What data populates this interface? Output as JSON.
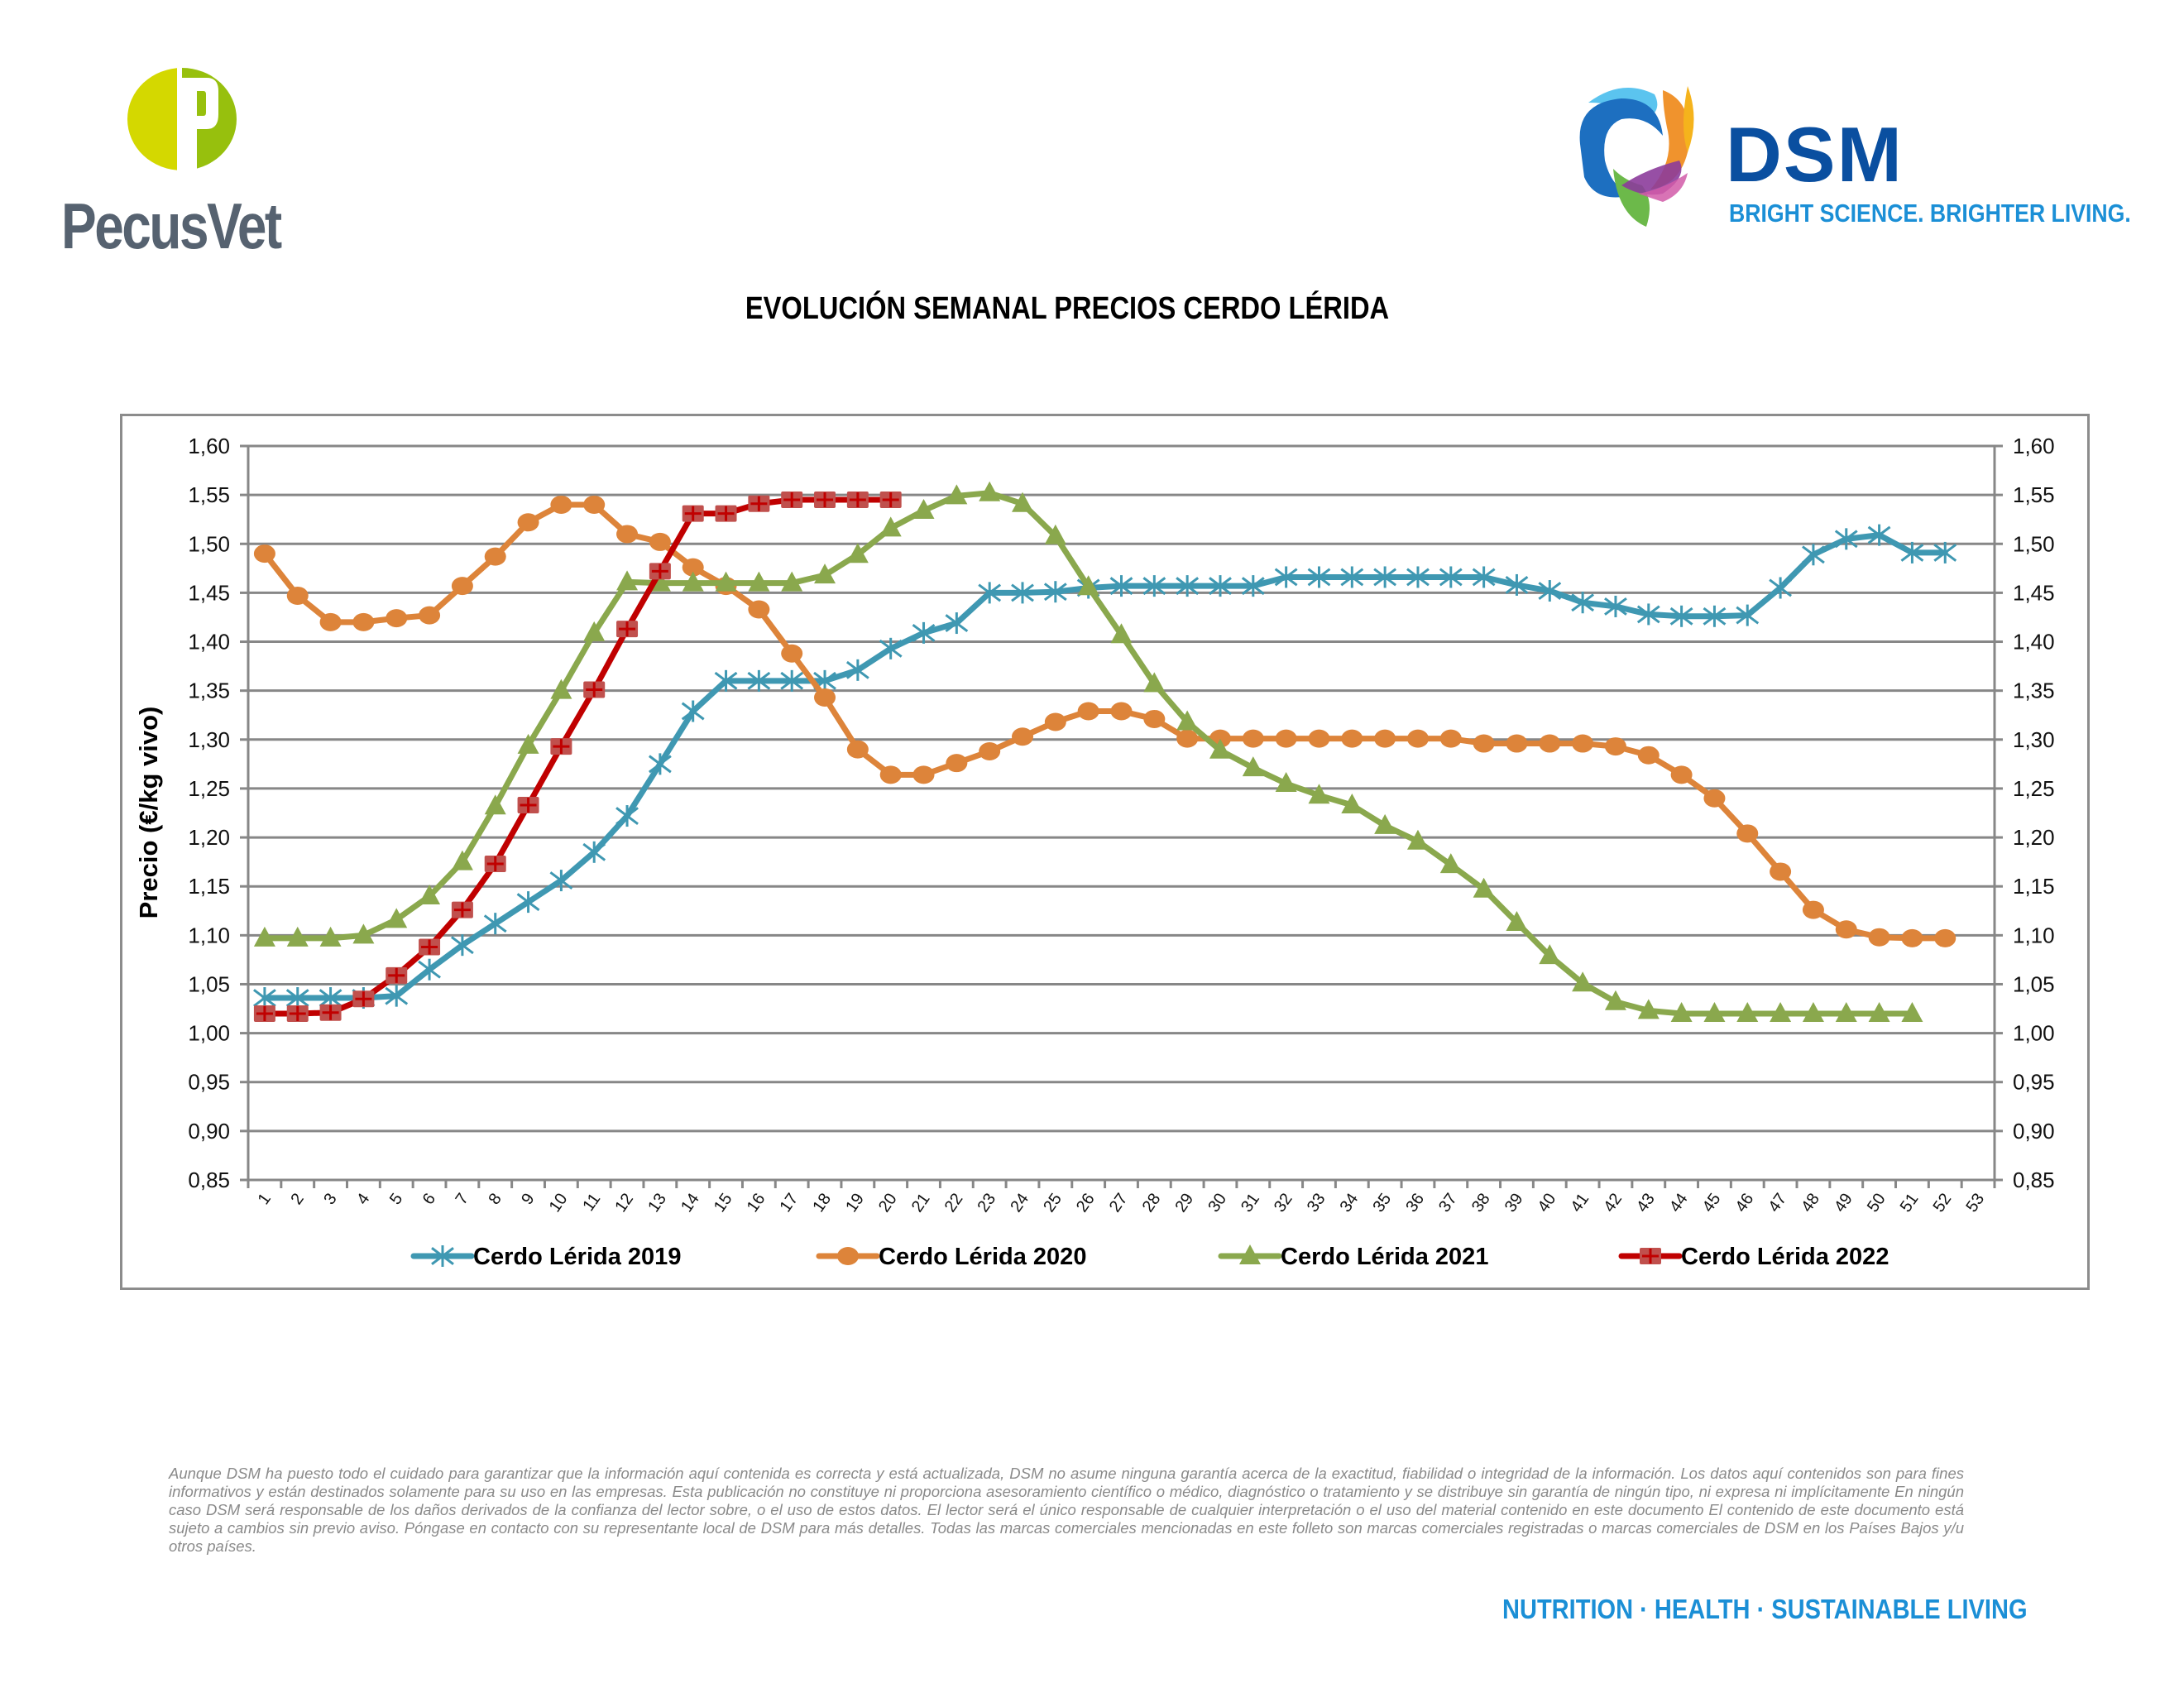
{
  "header": {
    "left_logo": {
      "mark_letter": "P",
      "name": "PecusVet",
      "colors": {
        "left": "#d4d800",
        "right": "#97c00d",
        "text": "#566270"
      }
    },
    "right_logo": {
      "name": "DSM",
      "tagline": "BRIGHT SCIENCE. BRIGHTER LIVING.",
      "colors": {
        "text": "#0a4fa0",
        "tagline": "#1b8fd6"
      }
    }
  },
  "chart_data": {
    "type": "line",
    "title": "EVOLUCIÓN SEMANAL PRECIOS CERDO LÉRIDA",
    "xlabel": "",
    "ylabel": "Precio (€/kg vivo)",
    "ylabel_right": "",
    "ylim": [
      0.85,
      1.6
    ],
    "ytick_step": 0.05,
    "yticks": [
      "1,60",
      "1,55",
      "1,50",
      "1,45",
      "1,40",
      "1,35",
      "1,30",
      "1,25",
      "1,20",
      "1,15",
      "1,10",
      "1,05",
      "1,00",
      "0,95",
      "0,90",
      "0,85"
    ],
    "ytick_values": [
      1.6,
      1.55,
      1.5,
      1.45,
      1.4,
      1.35,
      1.3,
      1.25,
      1.2,
      1.15,
      1.1,
      1.05,
      1.0,
      0.95,
      0.9,
      0.85
    ],
    "x": [
      1,
      2,
      3,
      4,
      5,
      6,
      7,
      8,
      9,
      10,
      11,
      12,
      13,
      14,
      15,
      16,
      17,
      18,
      19,
      20,
      21,
      22,
      23,
      24,
      25,
      26,
      27,
      28,
      29,
      30,
      31,
      32,
      33,
      34,
      35,
      36,
      37,
      38,
      39,
      40,
      41,
      42,
      43,
      44,
      45,
      46,
      47,
      48,
      49,
      50,
      51,
      52,
      53
    ],
    "grid": true,
    "dual_y_axis": true,
    "legend_position": "bottom",
    "series": [
      {
        "name": "Cerdo Lérida 2019",
        "color": "#3f98b2",
        "marker": "asterisk",
        "values": [
          1.036,
          1.036,
          1.036,
          1.036,
          1.038,
          1.065,
          1.09,
          1.112,
          1.134,
          1.156,
          1.185,
          1.222,
          1.275,
          1.329,
          1.36,
          1.36,
          1.36,
          1.36,
          1.371,
          1.393,
          1.409,
          1.419,
          1.45,
          1.45,
          1.451,
          1.455,
          1.457,
          1.457,
          1.457,
          1.457,
          1.457,
          1.466,
          1.466,
          1.466,
          1.466,
          1.466,
          1.466,
          1.466,
          1.458,
          1.452,
          1.44,
          1.436,
          1.428,
          1.426,
          1.426,
          1.427,
          1.455,
          1.489,
          1.505,
          1.509,
          1.491,
          1.491
        ]
      },
      {
        "name": "Cerdo Lérida 2020",
        "color": "#dd843a",
        "marker": "circle",
        "values": [
          1.49,
          1.447,
          1.42,
          1.42,
          1.424,
          1.427,
          1.457,
          1.487,
          1.522,
          1.54,
          1.54,
          1.51,
          1.502,
          1.476,
          1.457,
          1.433,
          1.388,
          1.343,
          1.29,
          1.264,
          1.264,
          1.276,
          1.288,
          1.303,
          1.318,
          1.329,
          1.329,
          1.321,
          1.301,
          1.301,
          1.301,
          1.301,
          1.301,
          1.301,
          1.301,
          1.301,
          1.301,
          1.296,
          1.296,
          1.296,
          1.296,
          1.293,
          1.284,
          1.264,
          1.24,
          1.204,
          1.165,
          1.126,
          1.106,
          1.098,
          1.097,
          1.097
        ]
      },
      {
        "name": "Cerdo Lérida 2021",
        "color": "#8aa84d",
        "marker": "triangle",
        "values": [
          1.097,
          1.097,
          1.097,
          1.1,
          1.116,
          1.14,
          1.175,
          1.232,
          1.294,
          1.35,
          1.409,
          1.461,
          1.46,
          1.46,
          1.46,
          1.46,
          1.46,
          1.468,
          1.489,
          1.516,
          1.534,
          1.549,
          1.552,
          1.541,
          1.508,
          1.456,
          1.407,
          1.357,
          1.318,
          1.289,
          1.271,
          1.255,
          1.243,
          1.233,
          1.212,
          1.196,
          1.172,
          1.147,
          1.113,
          1.079,
          1.051,
          1.032,
          1.023,
          1.02,
          1.02,
          1.02,
          1.02,
          1.02,
          1.02,
          1.02,
          1.02
        ]
      },
      {
        "name": "Cerdo Lérida 2022",
        "color": "#c00000",
        "marker_fill": "#c0504d",
        "marker": "square-plus",
        "values": [
          1.02,
          1.02,
          1.021,
          1.035,
          1.059,
          1.088,
          1.126,
          1.173,
          1.233,
          1.293,
          1.351,
          1.413,
          1.472,
          1.531,
          1.531,
          1.541,
          1.545,
          1.545,
          1.545,
          1.545
        ]
      }
    ]
  },
  "footer": {
    "disclaimer": "Aunque DSM ha puesto todo el cuidado para garantizar que la información aquí contenida es correcta y está actualizada, DSM no asume ninguna garantía acerca de la exactitud, fiabilidad o integridad de la información. Los datos aquí contenidos son para fines informativos y están destinados solamente para su uso en las empresas. Esta publicación no constituye ni proporciona asesoramiento científico o médico, diagnóstico o tratamiento y se distribuye sin garantía de ningún tipo, ni expresa ni implícitamente En ningún caso DSM será responsable de los daños derivados de la confianza del lector sobre, o el uso de estos datos. El lector será el único responsable de cualquier interpretación o el uso del material contenido en este documento El contenido de este documento está sujeto a cambios sin previo aviso. Póngase en contacto con su representante local de DSM para más detalles. Todas las marcas comerciales mencionadas en este folleto son marcas comerciales registradas o marcas comerciales de DSM en los Países Bajos y/u otros países.",
    "tagline": "NUTRITION · HEALTH · SUSTAINABLE LIVING"
  }
}
